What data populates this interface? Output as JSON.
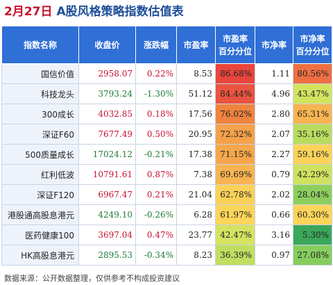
{
  "title": {
    "date": "2月27日",
    "name": "A股风格策略指数估值表"
  },
  "columns": [
    "指数名称",
    "收盘价",
    "涨跌幅",
    "市盈率",
    "市盈率\n百分分位",
    "市净率",
    "市净率\n百分分位"
  ],
  "rows": [
    {
      "name": "国信价值",
      "close": "2958.07",
      "change": "0.22%",
      "pe": "8.53",
      "pe_pct": "86.68%",
      "pb": "1.11",
      "pb_pct": "80.56%",
      "pe_color": "#e8463c",
      "pb_color": "#ee6f42"
    },
    {
      "name": "科技龙头",
      "close": "3793.24",
      "change": "-1.30%",
      "pe": "51.12",
      "pe_pct": "84.44%",
      "pb": "4.96",
      "pb_pct": "43.47%",
      "pe_color": "#ea5440",
      "pb_color": "#d2e35f"
    },
    {
      "name": "300成长",
      "close": "4032.85",
      "change": "0.18%",
      "pe": "17.56",
      "pe_pct": "76.02%",
      "pb": "2.80",
      "pb_pct": "65.31%",
      "pe_color": "#f0843f",
      "pb_color": "#f8b451"
    },
    {
      "name": "深证F60",
      "close": "7677.49",
      "change": "0.50%",
      "pe": "20.95",
      "pe_pct": "72.32%",
      "pb": "2.07",
      "pb_pct": "35.16%",
      "pe_color": "#f5a14a",
      "pb_color": "#b9dc5e"
    },
    {
      "name": "500质量成长",
      "close": "17024.12",
      "change": "-0.21%",
      "pe": "17.38",
      "pe_pct": "71.15%",
      "pb": "2.27",
      "pb_pct": "59.16%",
      "pe_color": "#f6a74c",
      "pb_color": "#fbd359"
    },
    {
      "name": "红利低波",
      "close": "10791.61",
      "change": "0.87%",
      "pe": "7.38",
      "pe_pct": "69.69%",
      "pb": "0.79",
      "pb_pct": "42.29%",
      "pe_color": "#f8b452",
      "pb_color": "#cfe15f"
    },
    {
      "name": "深证F120",
      "close": "6967.47",
      "change": "0.21%",
      "pe": "21.04",
      "pe_pct": "62.78%",
      "pb": "2.02",
      "pb_pct": "28.04%",
      "pe_color": "#fbd158",
      "pb_color": "#8ccf5e"
    },
    {
      "name": "港股通高股息港元",
      "close": "4249.10",
      "change": "-0.26%",
      "pe": "6.28",
      "pe_pct": "61.97%",
      "pb": "0.66",
      "pb_pct": "60.30%",
      "pe_color": "#fcd55a",
      "pb_color": "#fcd45a"
    },
    {
      "name": "医药健康100",
      "close": "3697.04",
      "change": "0.47%",
      "pe": "23.77",
      "pe_pct": "42.47%",
      "pb": "3.16",
      "pb_pct": "5.30%",
      "pe_color": "#d4e461",
      "pb_color": "#3aa75b"
    },
    {
      "name": "HK高股息港元",
      "close": "2895.53",
      "change": "-0.34%",
      "pe": "8.23",
      "pe_pct": "36.39%",
      "pb": "0.97",
      "pb_pct": "27.08%",
      "pe_color": "#c0de60",
      "pb_color": "#86cd5e"
    }
  ],
  "source": "数据来源：公开数据整理，仅供参考不构成投资建议",
  "colors": {
    "header_bg": "#2f6fd6",
    "positive": "#c8102e",
    "negative": "#1e7b34",
    "title_date": "#c8102e",
    "title_name": "#1f4e9a"
  }
}
